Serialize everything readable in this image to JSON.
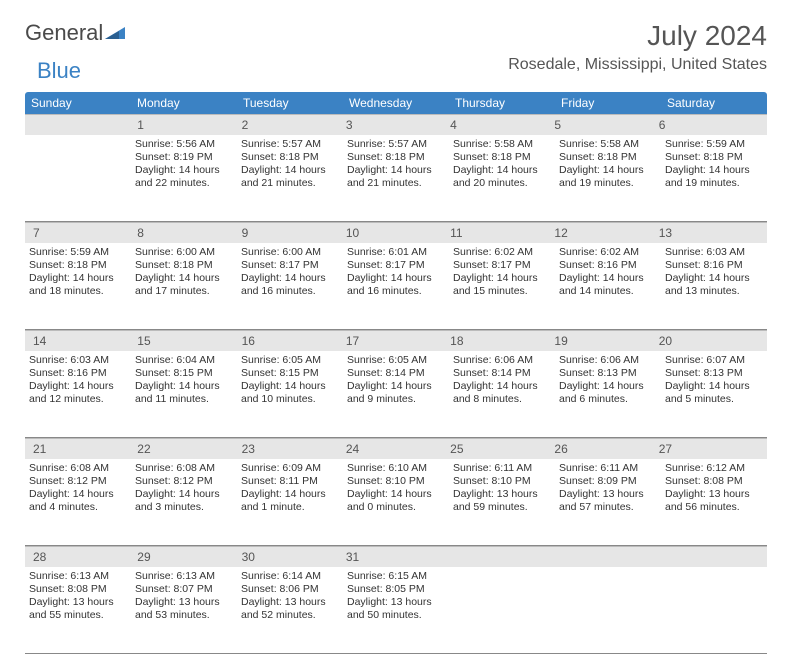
{
  "logo": {
    "part1": "General",
    "part2": "Blue"
  },
  "title": "July 2024",
  "location": "Rosedale, Mississippi, United States",
  "colors": {
    "header_bg": "#3b82c4",
    "header_text": "#ffffff",
    "daynum_bg": "#e6e6e6",
    "border": "#888888",
    "text": "#333333",
    "background": "#ffffff"
  },
  "weekdays": [
    "Sunday",
    "Monday",
    "Tuesday",
    "Wednesday",
    "Thursday",
    "Friday",
    "Saturday"
  ],
  "weeks": [
    {
      "nums": [
        "",
        "1",
        "2",
        "3",
        "4",
        "5",
        "6"
      ],
      "cells": [
        {},
        {
          "sr": "Sunrise: 5:56 AM",
          "ss": "Sunset: 8:19 PM",
          "dl1": "Daylight: 14 hours",
          "dl2": "and 22 minutes."
        },
        {
          "sr": "Sunrise: 5:57 AM",
          "ss": "Sunset: 8:18 PM",
          "dl1": "Daylight: 14 hours",
          "dl2": "and 21 minutes."
        },
        {
          "sr": "Sunrise: 5:57 AM",
          "ss": "Sunset: 8:18 PM",
          "dl1": "Daylight: 14 hours",
          "dl2": "and 21 minutes."
        },
        {
          "sr": "Sunrise: 5:58 AM",
          "ss": "Sunset: 8:18 PM",
          "dl1": "Daylight: 14 hours",
          "dl2": "and 20 minutes."
        },
        {
          "sr": "Sunrise: 5:58 AM",
          "ss": "Sunset: 8:18 PM",
          "dl1": "Daylight: 14 hours",
          "dl2": "and 19 minutes."
        },
        {
          "sr": "Sunrise: 5:59 AM",
          "ss": "Sunset: 8:18 PM",
          "dl1": "Daylight: 14 hours",
          "dl2": "and 19 minutes."
        }
      ]
    },
    {
      "nums": [
        "7",
        "8",
        "9",
        "10",
        "11",
        "12",
        "13"
      ],
      "cells": [
        {
          "sr": "Sunrise: 5:59 AM",
          "ss": "Sunset: 8:18 PM",
          "dl1": "Daylight: 14 hours",
          "dl2": "and 18 minutes."
        },
        {
          "sr": "Sunrise: 6:00 AM",
          "ss": "Sunset: 8:18 PM",
          "dl1": "Daylight: 14 hours",
          "dl2": "and 17 minutes."
        },
        {
          "sr": "Sunrise: 6:00 AM",
          "ss": "Sunset: 8:17 PM",
          "dl1": "Daylight: 14 hours",
          "dl2": "and 16 minutes."
        },
        {
          "sr": "Sunrise: 6:01 AM",
          "ss": "Sunset: 8:17 PM",
          "dl1": "Daylight: 14 hours",
          "dl2": "and 16 minutes."
        },
        {
          "sr": "Sunrise: 6:02 AM",
          "ss": "Sunset: 8:17 PM",
          "dl1": "Daylight: 14 hours",
          "dl2": "and 15 minutes."
        },
        {
          "sr": "Sunrise: 6:02 AM",
          "ss": "Sunset: 8:16 PM",
          "dl1": "Daylight: 14 hours",
          "dl2": "and 14 minutes."
        },
        {
          "sr": "Sunrise: 6:03 AM",
          "ss": "Sunset: 8:16 PM",
          "dl1": "Daylight: 14 hours",
          "dl2": "and 13 minutes."
        }
      ]
    },
    {
      "nums": [
        "14",
        "15",
        "16",
        "17",
        "18",
        "19",
        "20"
      ],
      "cells": [
        {
          "sr": "Sunrise: 6:03 AM",
          "ss": "Sunset: 8:16 PM",
          "dl1": "Daylight: 14 hours",
          "dl2": "and 12 minutes."
        },
        {
          "sr": "Sunrise: 6:04 AM",
          "ss": "Sunset: 8:15 PM",
          "dl1": "Daylight: 14 hours",
          "dl2": "and 11 minutes."
        },
        {
          "sr": "Sunrise: 6:05 AM",
          "ss": "Sunset: 8:15 PM",
          "dl1": "Daylight: 14 hours",
          "dl2": "and 10 minutes."
        },
        {
          "sr": "Sunrise: 6:05 AM",
          "ss": "Sunset: 8:14 PM",
          "dl1": "Daylight: 14 hours",
          "dl2": "and 9 minutes."
        },
        {
          "sr": "Sunrise: 6:06 AM",
          "ss": "Sunset: 8:14 PM",
          "dl1": "Daylight: 14 hours",
          "dl2": "and 8 minutes."
        },
        {
          "sr": "Sunrise: 6:06 AM",
          "ss": "Sunset: 8:13 PM",
          "dl1": "Daylight: 14 hours",
          "dl2": "and 6 minutes."
        },
        {
          "sr": "Sunrise: 6:07 AM",
          "ss": "Sunset: 8:13 PM",
          "dl1": "Daylight: 14 hours",
          "dl2": "and 5 minutes."
        }
      ]
    },
    {
      "nums": [
        "21",
        "22",
        "23",
        "24",
        "25",
        "26",
        "27"
      ],
      "cells": [
        {
          "sr": "Sunrise: 6:08 AM",
          "ss": "Sunset: 8:12 PM",
          "dl1": "Daylight: 14 hours",
          "dl2": "and 4 minutes."
        },
        {
          "sr": "Sunrise: 6:08 AM",
          "ss": "Sunset: 8:12 PM",
          "dl1": "Daylight: 14 hours",
          "dl2": "and 3 minutes."
        },
        {
          "sr": "Sunrise: 6:09 AM",
          "ss": "Sunset: 8:11 PM",
          "dl1": "Daylight: 14 hours",
          "dl2": "and 1 minute."
        },
        {
          "sr": "Sunrise: 6:10 AM",
          "ss": "Sunset: 8:10 PM",
          "dl1": "Daylight: 14 hours",
          "dl2": "and 0 minutes."
        },
        {
          "sr": "Sunrise: 6:11 AM",
          "ss": "Sunset: 8:10 PM",
          "dl1": "Daylight: 13 hours",
          "dl2": "and 59 minutes."
        },
        {
          "sr": "Sunrise: 6:11 AM",
          "ss": "Sunset: 8:09 PM",
          "dl1": "Daylight: 13 hours",
          "dl2": "and 57 minutes."
        },
        {
          "sr": "Sunrise: 6:12 AM",
          "ss": "Sunset: 8:08 PM",
          "dl1": "Daylight: 13 hours",
          "dl2": "and 56 minutes."
        }
      ]
    },
    {
      "nums": [
        "28",
        "29",
        "30",
        "31",
        "",
        "",
        ""
      ],
      "cells": [
        {
          "sr": "Sunrise: 6:13 AM",
          "ss": "Sunset: 8:08 PM",
          "dl1": "Daylight: 13 hours",
          "dl2": "and 55 minutes."
        },
        {
          "sr": "Sunrise: 6:13 AM",
          "ss": "Sunset: 8:07 PM",
          "dl1": "Daylight: 13 hours",
          "dl2": "and 53 minutes."
        },
        {
          "sr": "Sunrise: 6:14 AM",
          "ss": "Sunset: 8:06 PM",
          "dl1": "Daylight: 13 hours",
          "dl2": "and 52 minutes."
        },
        {
          "sr": "Sunrise: 6:15 AM",
          "ss": "Sunset: 8:05 PM",
          "dl1": "Daylight: 13 hours",
          "dl2": "and 50 minutes."
        },
        {},
        {},
        {}
      ]
    }
  ]
}
